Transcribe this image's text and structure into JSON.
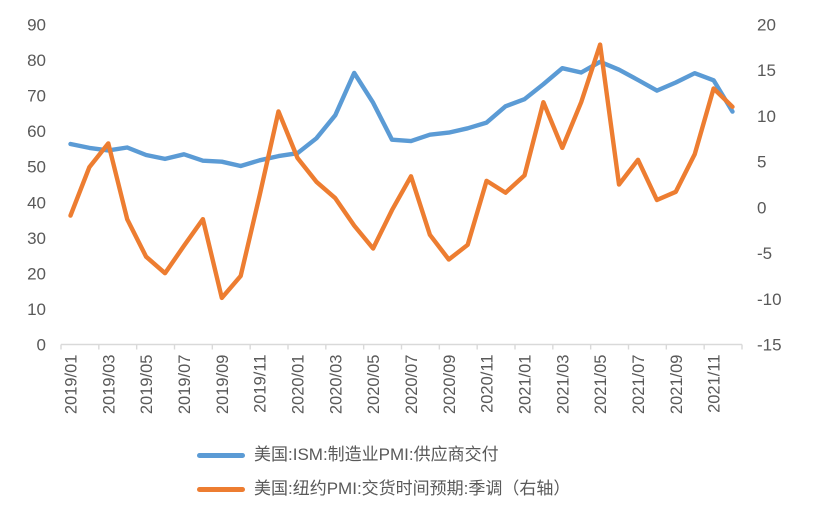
{
  "chart_data": {
    "type": "line",
    "title": "",
    "x": [
      "2019/01",
      "2019/02",
      "2019/03",
      "2019/04",
      "2019/05",
      "2019/06",
      "2019/07",
      "2019/08",
      "2019/09",
      "2019/10",
      "2019/11",
      "2019/12",
      "2020/01",
      "2020/02",
      "2020/03",
      "2020/04",
      "2020/05",
      "2020/06",
      "2020/07",
      "2020/08",
      "2020/09",
      "2020/10",
      "2020/11",
      "2020/12",
      "2021/01",
      "2021/02",
      "2021/03",
      "2021/04",
      "2021/05",
      "2021/06",
      "2021/07",
      "2021/08",
      "2021/09",
      "2021/10",
      "2021/11",
      "2021/12"
    ],
    "x_tick_every": 2,
    "visible_x_labels": [
      "2019/01",
      "2019/03",
      "2019/05",
      "2019/07",
      "2019/09",
      "2019/11",
      "2020/01",
      "2020/03",
      "2020/05",
      "2020/07",
      "2020/09",
      "2020/11",
      "2021/01",
      "2021/03",
      "2021/05",
      "2021/07",
      "2021/09",
      "2021/11"
    ],
    "left_axis": {
      "min": 0,
      "max": 90,
      "step": 10,
      "ticks": [
        0,
        10,
        20,
        30,
        40,
        50,
        60,
        70,
        80,
        90
      ]
    },
    "right_axis": {
      "min": -15,
      "max": 20,
      "step": 5,
      "ticks": [
        -15,
        -10,
        -5,
        0,
        5,
        10,
        15,
        20
      ]
    },
    "series": [
      {
        "name": "美国:ISM:制造业PMI:供应商交付",
        "axis": "left",
        "color": "#5B9BD5",
        "values": [
          56.4,
          55.3,
          54.6,
          55.4,
          53.3,
          52.2,
          53.5,
          51.7,
          51.4,
          50.2,
          51.8,
          53.0,
          53.8,
          58.0,
          64.5,
          76.4,
          68.0,
          57.6,
          57.2,
          59.0,
          59.6,
          60.8,
          62.4,
          67.0,
          69.0,
          73.2,
          77.7,
          76.5,
          79.5,
          77.3,
          74.4,
          71.4,
          73.7,
          76.3,
          74.3,
          65.5
        ]
      },
      {
        "name": "美国:纽约PMI:交货时间预期:季调（右轴）",
        "axis": "right",
        "color": "#ED7D31",
        "values": [
          -0.9,
          4.4,
          7.0,
          -1.3,
          -5.4,
          -7.2,
          -4.2,
          -1.3,
          -9.9,
          -7.5,
          1.3,
          10.5,
          5.4,
          2.8,
          1.0,
          -2.0,
          -4.5,
          -0.3,
          3.4,
          -3.0,
          -5.7,
          -4.1,
          2.9,
          1.6,
          3.5,
          11.5,
          6.5,
          11.5,
          17.8,
          2.5,
          5.2,
          0.8,
          1.7,
          5.8,
          13.0,
          11.0
        ]
      }
    ],
    "grid": false,
    "legend_position": "bottom-left",
    "text_color": "#595959",
    "axis_line_color": "#D9D9D9",
    "background": "#FFFFFF",
    "line_width": 4.4
  }
}
